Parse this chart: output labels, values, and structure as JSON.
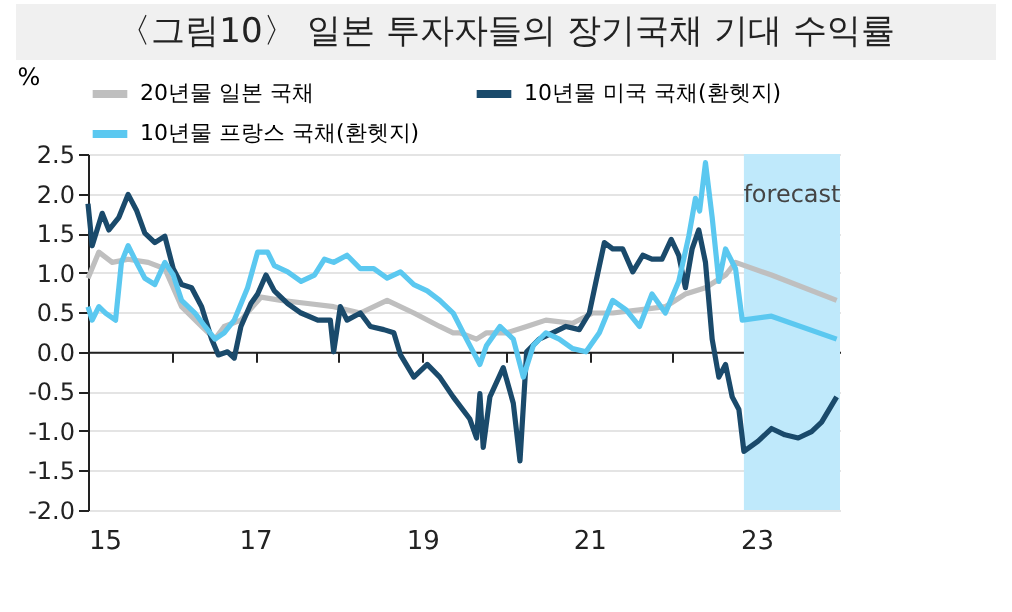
{
  "chart_data": {
    "type": "line",
    "title": "〈그림10〉 일본 투자자들의 장기국채 기대 수익률",
    "ylabel": "%",
    "xlim": [
      2015,
      2024
    ],
    "xticks": [
      {
        "value": 2015,
        "label": "15"
      },
      {
        "value": 2016,
        "label": null
      },
      {
        "value": 2017,
        "label": "17"
      },
      {
        "value": 2018,
        "label": null
      },
      {
        "value": 2019,
        "label": "19"
      },
      {
        "value": 2020,
        "label": null
      },
      {
        "value": 2021,
        "label": "21"
      },
      {
        "value": 2022,
        "label": null
      },
      {
        "value": 2023,
        "label": "23"
      }
    ],
    "ylim": [
      -2,
      2.5
    ],
    "yticks": [
      {
        "value": -2,
        "label": "-2.0"
      },
      -1.5,
      {
        "value": -1,
        "label": "-1.0"
      },
      -0.5,
      {
        "value": 0,
        "label": "0.0"
      },
      0.5,
      {
        "value": 1,
        "label": "1.0"
      },
      1.5,
      {
        "value": 2,
        "label": "2.0"
      },
      2.5
    ],
    "grid": "y",
    "legend": "top",
    "line_style": "solid",
    "marker": "none",
    "bands": [
      {
        "axis": "x",
        "from": 2022.85,
        "to": 2024,
        "label": "forecast",
        "color": "#bfe9fb"
      }
    ],
    "series": [
      {
        "name": "20년물 일본 국채",
        "color": "#bfbfbf",
        "x": [
          2015.0,
          2015.13,
          2015.29,
          2015.48,
          2015.72,
          2015.92,
          2016.12,
          2016.36,
          2016.52,
          2016.63,
          2016.83,
          2017.07,
          2017.31,
          2017.63,
          2017.94,
          2018.26,
          2018.58,
          2018.9,
          2019.21,
          2019.37,
          2019.45,
          2019.65,
          2019.77,
          2020.01,
          2020.25,
          2020.48,
          2020.8,
          2021.04,
          2021.28,
          2021.6,
          2021.91,
          2022.15,
          2022.39,
          2022.63,
          2022.75,
          2023.18,
          2023.96
        ],
        "values": [
          0.93,
          1.26,
          1.13,
          1.17,
          1.13,
          1.05,
          0.57,
          0.32,
          0.16,
          0.32,
          0.4,
          0.69,
          0.65,
          0.61,
          0.57,
          0.49,
          0.65,
          0.49,
          0.32,
          0.24,
          0.24,
          0.16,
          0.24,
          0.24,
          0.32,
          0.4,
          0.36,
          0.49,
          0.49,
          0.53,
          0.57,
          0.73,
          0.81,
          0.97,
          1.13,
          0.97,
          0.65
        ]
      },
      {
        "name": "10년물 미국 국채(환헷지)",
        "color": "#1a4a6b",
        "x": [
          2015.0,
          2015.05,
          2015.17,
          2015.25,
          2015.37,
          2015.48,
          2015.58,
          2015.68,
          2015.8,
          2015.92,
          2016.02,
          2016.12,
          2016.24,
          2016.36,
          2016.48,
          2016.56,
          2016.67,
          2016.75,
          2016.83,
          2016.95,
          2017.03,
          2017.13,
          2017.23,
          2017.39,
          2017.55,
          2017.75,
          2017.9,
          2017.94,
          2018.02,
          2018.1,
          2018.26,
          2018.38,
          2018.54,
          2018.66,
          2018.74,
          2018.9,
          2019.06,
          2019.21,
          2019.37,
          2019.57,
          2019.65,
          2019.69,
          2019.73,
          2019.81,
          2019.97,
          2020.09,
          2020.17,
          2020.25,
          2020.4,
          2020.56,
          2020.72,
          2020.88,
          2021.0,
          2021.08,
          2021.18,
          2021.28,
          2021.4,
          2021.52,
          2021.64,
          2021.75,
          2021.87,
          2021.98,
          2022.07,
          2022.15,
          2022.23,
          2022.31,
          2022.39,
          2022.47,
          2022.55,
          2022.63,
          2022.71,
          2022.79,
          2022.85,
          2023.02,
          2023.18,
          2023.34,
          2023.5,
          2023.66,
          2023.78,
          2023.96
        ],
        "values": [
          1.87,
          1.34,
          1.75,
          1.54,
          1.7,
          1.99,
          1.79,
          1.5,
          1.38,
          1.46,
          1.05,
          0.85,
          0.81,
          0.57,
          0.16,
          -0.04,
          0,
          -0.08,
          0.32,
          0.61,
          0.73,
          0.97,
          0.77,
          0.61,
          0.49,
          0.4,
          0.4,
          0,
          0.57,
          0.4,
          0.49,
          0.32,
          0.28,
          0.24,
          -0.04,
          -0.32,
          -0.16,
          -0.32,
          -0.57,
          -0.85,
          -1.09,
          -0.53,
          -1.21,
          -0.57,
          -0.2,
          -0.65,
          -1.38,
          0,
          0.16,
          0.24,
          0.32,
          0.28,
          0.49,
          0.89,
          1.38,
          1.3,
          1.3,
          1.01,
          1.22,
          1.17,
          1.17,
          1.42,
          1.22,
          0.81,
          1.3,
          1.54,
          1.13,
          0.16,
          -0.32,
          -0.16,
          -0.57,
          -0.73,
          -1.26,
          -1.13,
          -0.97,
          -1.05,
          -1.09,
          -1.01,
          -0.89,
          -0.57
        ]
      },
      {
        "name": "10년물 프랑스 국채(환헷지)",
        "color": "#5bc8f0",
        "x": [
          2015.0,
          2015.05,
          2015.13,
          2015.21,
          2015.33,
          2015.4,
          2015.48,
          2015.58,
          2015.68,
          2015.8,
          2015.92,
          2016.02,
          2016.12,
          2016.28,
          2016.4,
          2016.52,
          2016.63,
          2016.75,
          2016.91,
          2017.03,
          2017.15,
          2017.23,
          2017.39,
          2017.55,
          2017.71,
          2017.83,
          2017.94,
          2018.1,
          2018.26,
          2018.42,
          2018.58,
          2018.74,
          2018.9,
          2019.06,
          2019.21,
          2019.37,
          2019.53,
          2019.65,
          2019.69,
          2019.77,
          2019.93,
          2020.09,
          2020.21,
          2020.33,
          2020.48,
          2020.64,
          2020.8,
          2020.96,
          2021.12,
          2021.28,
          2021.44,
          2021.6,
          2021.75,
          2021.91,
          2022.07,
          2022.19,
          2022.27,
          2022.32,
          2022.39,
          2022.47,
          2022.55,
          2022.63,
          2022.75,
          2022.83,
          2023.18,
          2023.96
        ],
        "values": [
          0.57,
          0.4,
          0.57,
          0.49,
          0.4,
          1.13,
          1.34,
          1.13,
          0.93,
          0.85,
          1.13,
          0.97,
          0.65,
          0.49,
          0.32,
          0.16,
          0.24,
          0.4,
          0.81,
          1.26,
          1.26,
          1.09,
          1.01,
          0.89,
          0.97,
          1.17,
          1.13,
          1.22,
          1.05,
          1.05,
          0.93,
          1.01,
          0.85,
          0.77,
          0.65,
          0.49,
          0.16,
          -0.08,
          -0.16,
          0.08,
          0.32,
          0.16,
          -0.32,
          0.08,
          0.24,
          0.16,
          0.04,
          0,
          0.24,
          0.65,
          0.53,
          0.32,
          0.73,
          0.49,
          0.89,
          1.46,
          1.94,
          1.78,
          2.39,
          1.7,
          0.89,
          1.3,
          1.05,
          0.4,
          0.45,
          0.16
        ]
      }
    ]
  }
}
